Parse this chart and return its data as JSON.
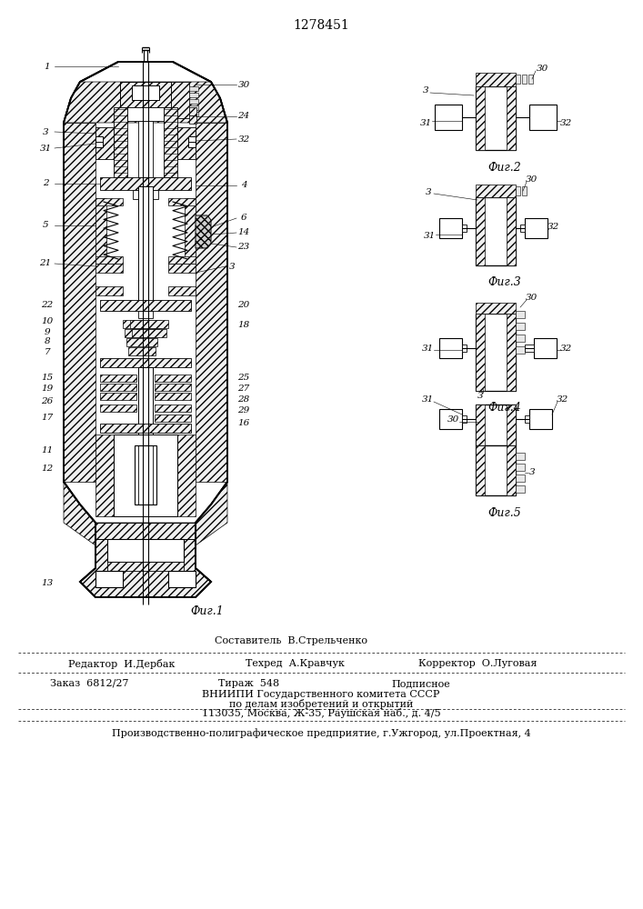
{
  "title": "1278451",
  "bg_color": "#ffffff",
  "fig1_caption": "Фиг.1",
  "fig2_caption": "Фиг.2",
  "fig3_caption": "Фиг.3",
  "fig4_caption": "Фиг.4",
  "fig5_caption": "Фиг.5",
  "footer_sestavitel": "Составитель  В.Стрельченко",
  "footer_redaktor": "Редактор  И.Дербак",
  "footer_tehred": "Техред  А.Кравчук",
  "footer_korrektor": "Корректор  О.Луговая",
  "footer_zakaz": "Заказ  6812/27",
  "footer_tirazh": "Тираж  548",
  "footer_podpisnoe": "Подписное",
  "footer_vniip1": "ВНИИПИ Государственного комитета СССР",
  "footer_vniip2": "по делам изобретений и открытий",
  "footer_addr": "113035, Москва, Ж-35, Раушская наб., д. 4/5",
  "footer_poligraf": "Производственно-полиграфическое предприятие, г.Ужгород, ул.Проектная, 4",
  "line_color": "#000000",
  "text_color": "#000000"
}
